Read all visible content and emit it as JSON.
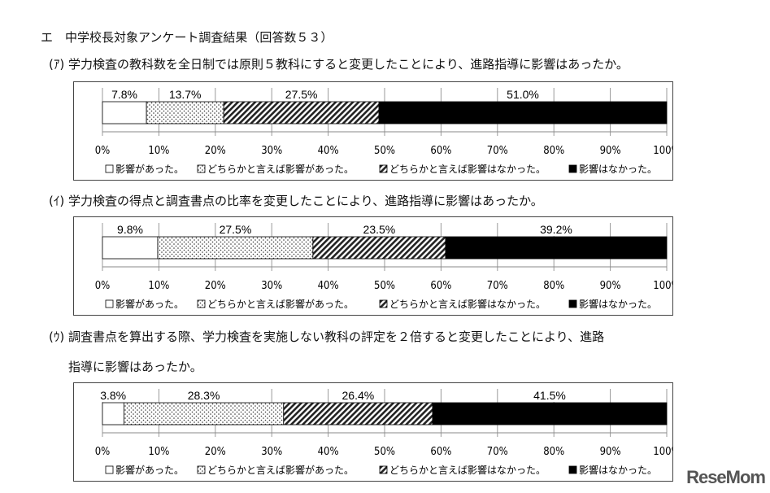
{
  "heading": "エ　中学校長対象アンケート調査結果（回答数５３）",
  "questions": [
    {
      "lines": [
        "(ｱ) 学力検査の教科数を全日制では原則５教科にすると変更したことにより、進路指導に影響はあったか。"
      ]
    },
    {
      "lines": [
        "(ｲ) 学力検査の得点と調査書点の比率を変更したことにより、進路指導に影響はあったか。"
      ]
    },
    {
      "lines": [
        "(ｳ) 調査書点を算出する際、学力検査を実施しない教科の評定を２倍すると変更したことにより、進路",
        "指導に影響はあったか。"
      ]
    }
  ],
  "watermark": "ReseMom",
  "chart_data": [
    {
      "type": "bar",
      "stacked": true,
      "orientation": "horizontal",
      "xlim": [
        0,
        100
      ],
      "grid": true,
      "legend": "bottom",
      "ticks": [
        "0%",
        "10%",
        "20%",
        "30%",
        "40%",
        "50%",
        "60%",
        "70%",
        "80%",
        "90%",
        "100%"
      ],
      "series": [
        {
          "name": "影響があった。",
          "value": 7.8,
          "label": "7.8%",
          "fill": "white"
        },
        {
          "name": "どちらかと言えば影響があった。",
          "value": 13.7,
          "label": "13.7%",
          "fill": "dots"
        },
        {
          "name": "どちらかと言えば影響はなかった。",
          "value": 27.5,
          "label": "27.5%",
          "fill": "hatch"
        },
        {
          "name": "影響はなかった。",
          "value": 51.0,
          "label": "51.0%",
          "fill": "black"
        }
      ]
    },
    {
      "type": "bar",
      "stacked": true,
      "orientation": "horizontal",
      "xlim": [
        0,
        100
      ],
      "grid": true,
      "legend": "bottom",
      "ticks": [
        "0%",
        "10%",
        "20%",
        "30%",
        "40%",
        "50%",
        "60%",
        "70%",
        "80%",
        "90%",
        "100%"
      ],
      "series": [
        {
          "name": "影響があった。",
          "value": 9.8,
          "label": "9.8%",
          "fill": "white"
        },
        {
          "name": "どちらかと言えば影響があった。",
          "value": 27.5,
          "label": "27.5%",
          "fill": "dots"
        },
        {
          "name": "どちらかと言えば影響はなかった。",
          "value": 23.5,
          "label": "23.5%",
          "fill": "hatch"
        },
        {
          "name": "影響はなかった。",
          "value": 39.2,
          "label": "39.2%",
          "fill": "black"
        }
      ]
    },
    {
      "type": "bar",
      "stacked": true,
      "orientation": "horizontal",
      "xlim": [
        0,
        100
      ],
      "grid": true,
      "legend": "bottom",
      "ticks": [
        "0%",
        "10%",
        "20%",
        "30%",
        "40%",
        "50%",
        "60%",
        "70%",
        "80%",
        "90%",
        "100%"
      ],
      "series": [
        {
          "name": "影響があった。",
          "value": 3.8,
          "label": "3.8%",
          "fill": "white"
        },
        {
          "name": "どちらかと言えば影響があった。",
          "value": 28.3,
          "label": "28.3%",
          "fill": "dots"
        },
        {
          "name": "どちらかと言えば影響はなかった。",
          "value": 26.4,
          "label": "26.4%",
          "fill": "hatch"
        },
        {
          "name": "影響はなかった。",
          "value": 41.5,
          "label": "41.5%",
          "fill": "black"
        }
      ]
    }
  ]
}
